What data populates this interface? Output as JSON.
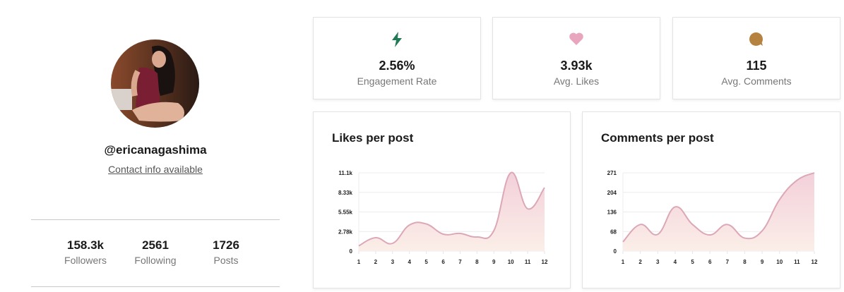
{
  "profile": {
    "username": "@ericanagashima",
    "contact_link": "Contact info available",
    "avatar_alt": "profile-photo",
    "stats": [
      {
        "value": "158.3k",
        "label": "Followers"
      },
      {
        "value": "2561",
        "label": "Following"
      },
      {
        "value": "1726",
        "label": "Posts"
      }
    ]
  },
  "metrics": [
    {
      "icon": "lightning-icon",
      "value": "2.56%",
      "label": "Engagement Rate",
      "color": "#1f7a55"
    },
    {
      "icon": "heart-icon",
      "value": "3.93k",
      "label": "Avg. Likes",
      "color": "#e8a5bd"
    },
    {
      "icon": "comment-bubble-icon",
      "value": "115",
      "label": "Avg. Comments",
      "color": "#b5823f"
    }
  ],
  "charts": {
    "likes": {
      "title": "Likes per post"
    },
    "comments": {
      "title": "Comments per post"
    }
  },
  "colors": {
    "line": "#dca7b6",
    "fill_top": "#f3d0da",
    "fill_bottom": "#fbeee8"
  },
  "chart_data": [
    {
      "type": "area",
      "title": "Likes per post",
      "xlabel": "",
      "ylabel": "",
      "categories": [
        "1",
        "2",
        "3",
        "4",
        "5",
        "6",
        "7",
        "8",
        "9",
        "10",
        "11",
        "12"
      ],
      "values": [
        750,
        1900,
        1100,
        3700,
        3850,
        2400,
        2500,
        2000,
        2900,
        11100,
        6000,
        9000
      ],
      "y_ticks": [
        "0",
        "2.78k",
        "5.55k",
        "8.33k",
        "11.1k"
      ],
      "ylim": [
        0,
        11100
      ],
      "grid": true,
      "legend": "none"
    },
    {
      "type": "area",
      "title": "Comments per post",
      "xlabel": "",
      "ylabel": "",
      "categories": [
        "1",
        "2",
        "3",
        "4",
        "5",
        "6",
        "7",
        "8",
        "9",
        "10",
        "11",
        "12"
      ],
      "values": [
        32,
        92,
        58,
        153,
        92,
        56,
        92,
        45,
        70,
        178,
        245,
        271
      ],
      "y_ticks": [
        "0",
        "68",
        "136",
        "204",
        "271"
      ],
      "ylim": [
        0,
        271
      ],
      "grid": true,
      "legend": "none"
    }
  ]
}
